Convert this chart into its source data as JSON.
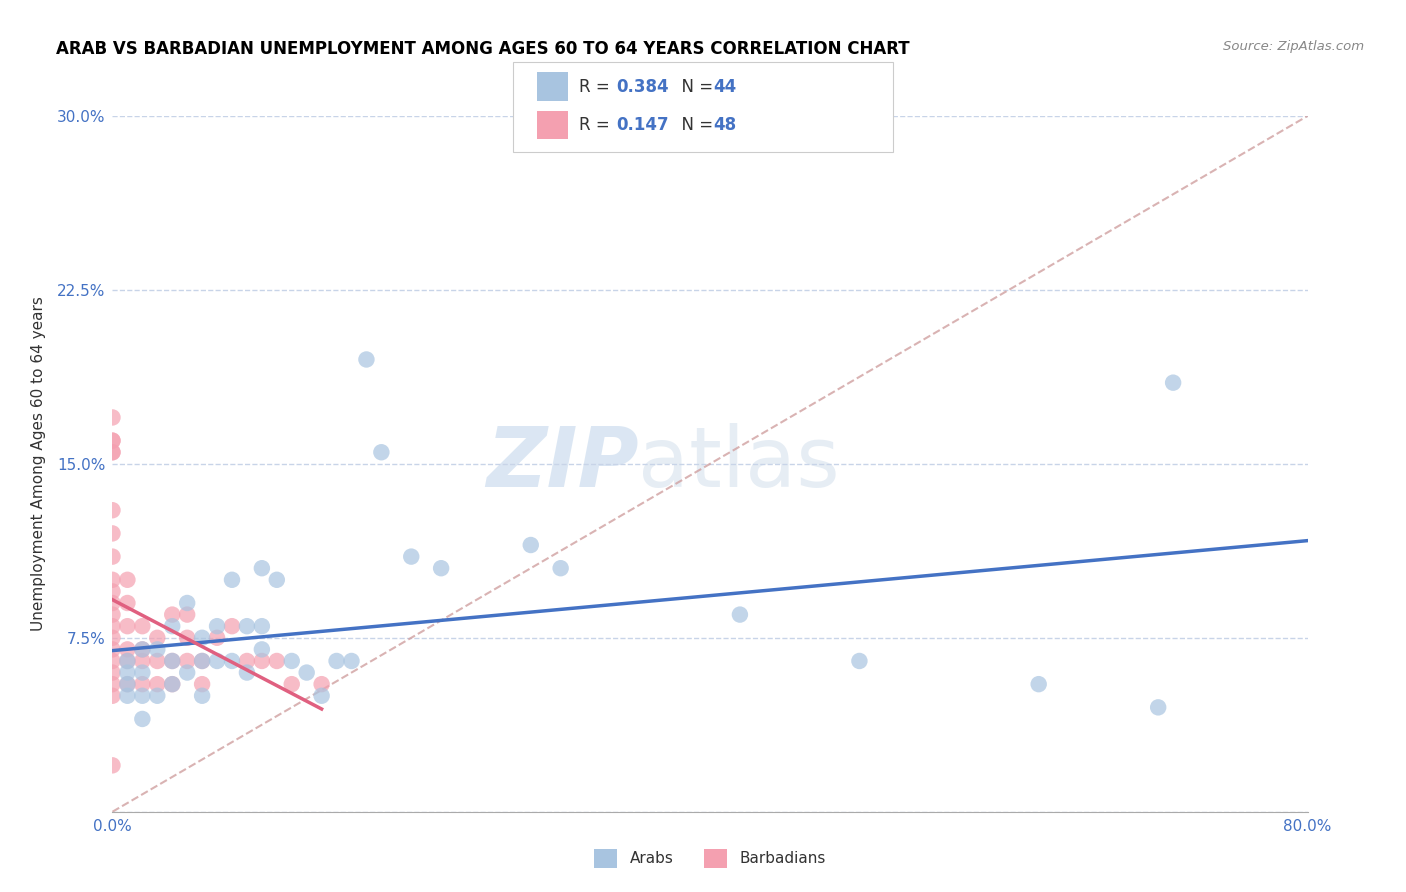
{
  "title": "ARAB VS BARBADIAN UNEMPLOYMENT AMONG AGES 60 TO 64 YEARS CORRELATION CHART",
  "source": "Source: ZipAtlas.com",
  "ylabel": "Unemployment Among Ages 60 to 64 years",
  "xlim": [
    0.0,
    0.8
  ],
  "ylim": [
    0.0,
    0.3
  ],
  "xticks": [
    0.0,
    0.1,
    0.2,
    0.3,
    0.4,
    0.5,
    0.6,
    0.7,
    0.8
  ],
  "xticklabels": [
    "0.0%",
    "",
    "",
    "",
    "",
    "",
    "",
    "",
    "80.0%"
  ],
  "yticks": [
    0.0,
    0.075,
    0.15,
    0.225,
    0.3
  ],
  "yticklabels": [
    "",
    "7.5%",
    "15.0%",
    "22.5%",
    "30.0%"
  ],
  "arab_R": 0.384,
  "arab_N": 44,
  "barbadian_R": 0.147,
  "barbadian_N": 48,
  "arab_color": "#a8c4e0",
  "barbadian_color": "#f4a0b0",
  "arab_line_color": "#4472c4",
  "barbadian_line_color": "#e06080",
  "diag_line_color": "#d0a0a0",
  "watermark_zip": "ZIP",
  "watermark_atlas": "atlas",
  "arab_x": [
    0.01,
    0.01,
    0.01,
    0.01,
    0.02,
    0.02,
    0.02,
    0.02,
    0.03,
    0.03,
    0.04,
    0.04,
    0.04,
    0.05,
    0.05,
    0.06,
    0.06,
    0.06,
    0.07,
    0.07,
    0.08,
    0.08,
    0.09,
    0.09,
    0.1,
    0.1,
    0.1,
    0.11,
    0.12,
    0.13,
    0.14,
    0.15,
    0.16,
    0.17,
    0.18,
    0.2,
    0.22,
    0.28,
    0.3,
    0.42,
    0.5,
    0.62,
    0.7,
    0.71
  ],
  "arab_y": [
    0.05,
    0.055,
    0.06,
    0.065,
    0.04,
    0.05,
    0.06,
    0.07,
    0.05,
    0.07,
    0.055,
    0.065,
    0.08,
    0.06,
    0.09,
    0.05,
    0.065,
    0.075,
    0.065,
    0.08,
    0.065,
    0.1,
    0.06,
    0.08,
    0.07,
    0.08,
    0.105,
    0.1,
    0.065,
    0.06,
    0.05,
    0.065,
    0.065,
    0.195,
    0.155,
    0.11,
    0.105,
    0.115,
    0.105,
    0.085,
    0.065,
    0.055,
    0.045,
    0.185
  ],
  "barbadian_x": [
    0.0,
    0.0,
    0.0,
    0.0,
    0.0,
    0.0,
    0.0,
    0.0,
    0.0,
    0.0,
    0.0,
    0.0,
    0.0,
    0.0,
    0.0,
    0.0,
    0.0,
    0.0,
    0.0,
    0.0,
    0.01,
    0.01,
    0.01,
    0.01,
    0.01,
    0.01,
    0.02,
    0.02,
    0.02,
    0.02,
    0.03,
    0.03,
    0.03,
    0.04,
    0.04,
    0.04,
    0.05,
    0.05,
    0.05,
    0.06,
    0.06,
    0.07,
    0.08,
    0.09,
    0.1,
    0.11,
    0.12,
    0.14
  ],
  "barbadian_y": [
    0.05,
    0.055,
    0.06,
    0.065,
    0.07,
    0.075,
    0.08,
    0.085,
    0.09,
    0.095,
    0.1,
    0.11,
    0.12,
    0.13,
    0.155,
    0.16,
    0.17,
    0.02,
    0.16,
    0.155,
    0.055,
    0.065,
    0.07,
    0.08,
    0.09,
    0.1,
    0.055,
    0.065,
    0.07,
    0.08,
    0.055,
    0.065,
    0.075,
    0.055,
    0.065,
    0.085,
    0.065,
    0.075,
    0.085,
    0.055,
    0.065,
    0.075,
    0.08,
    0.065,
    0.065,
    0.065,
    0.055,
    0.055
  ]
}
